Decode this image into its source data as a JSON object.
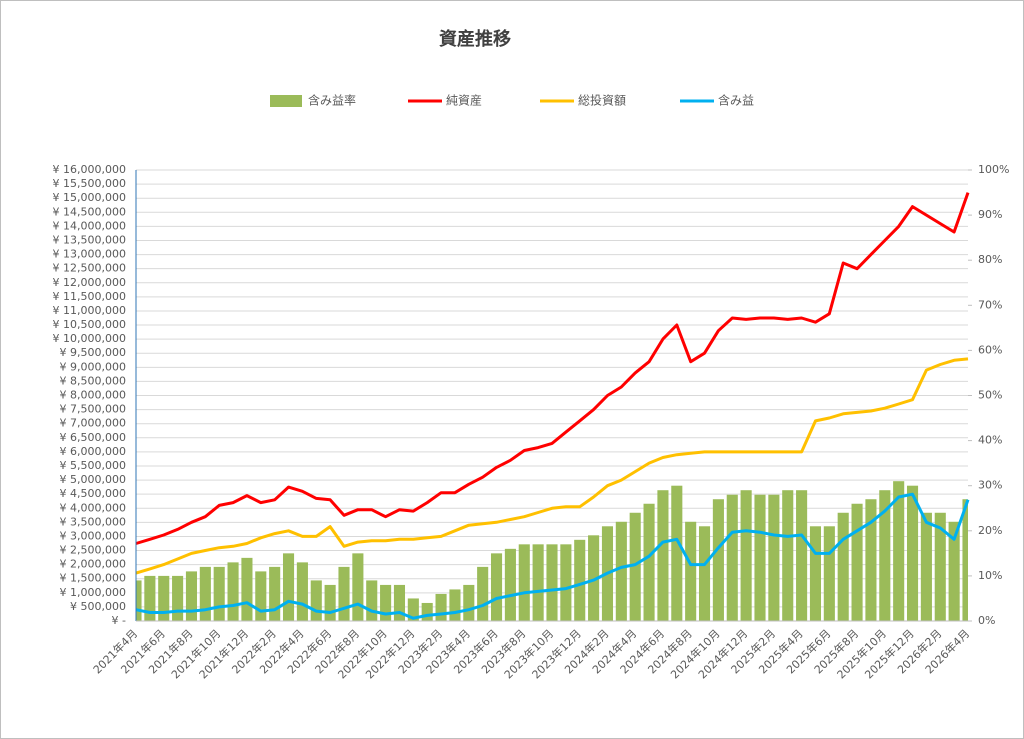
{
  "chart_data": {
    "type": "combo",
    "title": "資産推移",
    "categories": [
      "2021年4月",
      null,
      "2021年6月",
      null,
      "2021年8月",
      null,
      "2021年10月",
      null,
      "2021年12月",
      null,
      "2022年2月",
      null,
      "2022年4月",
      null,
      "2022年6月",
      null,
      "2022年8月",
      null,
      "2022年10月",
      null,
      "2022年12月",
      null,
      "2023年2月",
      null,
      "2023年4月",
      null,
      "2023年6月",
      null,
      "2023年8月",
      null,
      "2023年10月",
      null,
      "2023年12月",
      null,
      "2024年2月",
      null,
      "2024年4月",
      null,
      "2024年6月",
      null,
      "2024年8月",
      null,
      "2024年10月",
      null,
      "2024年12月",
      null,
      "2025年2月",
      null,
      "2025年4月",
      null,
      "2025年6月",
      null,
      "2025年8月",
      null,
      "2025年10月",
      null,
      "2025年12月",
      null,
      "2026年2月",
      null,
      "2026年4月"
    ],
    "series": [
      {
        "name": "含み益率",
        "type": "bar",
        "axis": "y2",
        "color": "#9bbb59",
        "values": [
          9,
          10,
          10,
          10,
          11,
          12,
          12,
          13,
          14,
          11,
          12,
          15,
          13,
          9,
          8,
          12,
          15,
          9,
          8,
          8,
          5,
          4,
          6,
          7,
          8,
          12,
          15,
          16,
          17,
          17,
          17,
          17,
          18,
          19,
          21,
          22,
          24,
          26,
          29,
          30,
          22,
          21,
          27,
          28,
          29,
          28,
          28,
          29,
          29,
          21,
          21,
          24,
          26,
          27,
          29,
          31,
          30,
          24,
          24,
          22,
          27
        ]
      },
      {
        "name": "純資産",
        "type": "line",
        "color": "#ff0000",
        "values": [
          2750000,
          2900000,
          3050000,
          3250000,
          3500000,
          3700000,
          4100000,
          4200000,
          4450000,
          4200000,
          4300000,
          4750000,
          4600000,
          4350000,
          4300000,
          3750000,
          3950000,
          3950000,
          3700000,
          3950000,
          3900000,
          4200000,
          4550000,
          4550000,
          4850000,
          5100000,
          5450000,
          5700000,
          6050000,
          6150000,
          6300000,
          6700000,
          7100000,
          7500000,
          8000000,
          8300000,
          8800000,
          9200000,
          10000000,
          10500000,
          9200000,
          9500000,
          10300000,
          10750000,
          10700000,
          10750000,
          10750000,
          10700000,
          10750000,
          10600000,
          10900000,
          12700000,
          12500000,
          13000000,
          13500000,
          14000000,
          14700000,
          14400000,
          14100000,
          13800000,
          15200000
        ]
      },
      {
        "name": "総投資額",
        "type": "line",
        "color": "#ffc000",
        "values": [
          1700000,
          1850000,
          2000000,
          2200000,
          2400000,
          2500000,
          2600000,
          2650000,
          2750000,
          2950000,
          3100000,
          3200000,
          3000000,
          3000000,
          3350000,
          2650000,
          2800000,
          2850000,
          2850000,
          2900000,
          2900000,
          2950000,
          3000000,
          3200000,
          3400000,
          3450000,
          3500000,
          3600000,
          3700000,
          3850000,
          4000000,
          4050000,
          4050000,
          4400000,
          4800000,
          5000000,
          5300000,
          5600000,
          5800000,
          5900000,
          5950000,
          6000000,
          6000000,
          6000000,
          6000000,
          6000000,
          6000000,
          6000000,
          6000000,
          7100000,
          7200000,
          7350000,
          7400000,
          7450000,
          7550000,
          7700000,
          7850000,
          8900000,
          9100000,
          9250000,
          9300000
        ]
      },
      {
        "name": "含み益",
        "type": "line",
        "color": "#00b0f0",
        "values": [
          400000,
          300000,
          300000,
          350000,
          350000,
          400000,
          500000,
          550000,
          650000,
          350000,
          400000,
          700000,
          600000,
          350000,
          300000,
          450000,
          600000,
          350000,
          250000,
          300000,
          100000,
          200000,
          250000,
          300000,
          400000,
          550000,
          800000,
          900000,
          1000000,
          1050000,
          1100000,
          1150000,
          1300000,
          1450000,
          1700000,
          1900000,
          2000000,
          2300000,
          2800000,
          2900000,
          2000000,
          2000000,
          2600000,
          3150000,
          3200000,
          3150000,
          3050000,
          3000000,
          3050000,
          2400000,
          2400000,
          2900000,
          3200000,
          3500000,
          3900000,
          4400000,
          4500000,
          3500000,
          3300000,
          2900000,
          4300000
        ]
      }
    ],
    "ylim": [
      0,
      16000000
    ],
    "yticks": [
      {
        "value": 0,
        "label": "¥ -"
      },
      {
        "value": 500000,
        "label": "¥ 500,000"
      },
      {
        "value": 1000000,
        "label": "¥ 1,000,000"
      },
      {
        "value": 1500000,
        "label": "¥ 1,500,000"
      },
      {
        "value": 2000000,
        "label": "¥ 2,000,000"
      },
      {
        "value": 2500000,
        "label": "¥ 2,500,000"
      },
      {
        "value": 3000000,
        "label": "¥ 3,000,000"
      },
      {
        "value": 3500000,
        "label": "¥ 3,500,000"
      },
      {
        "value": 4000000,
        "label": "¥ 4,000,000"
      },
      {
        "value": 4500000,
        "label": "¥ 4,500,000"
      },
      {
        "value": 5000000,
        "label": "¥ 5,000,000"
      },
      {
        "value": 5500000,
        "label": "¥ 5,500,000"
      },
      {
        "value": 6000000,
        "label": "¥ 6,000,000"
      },
      {
        "value": 6500000,
        "label": "¥ 6,500,000"
      },
      {
        "value": 7000000,
        "label": "¥ 7,000,000"
      },
      {
        "value": 7500000,
        "label": "¥ 7,500,000"
      },
      {
        "value": 8000000,
        "label": "¥ 8,000,000"
      },
      {
        "value": 8500000,
        "label": "¥ 8,500,000"
      },
      {
        "value": 9000000,
        "label": "¥ 9,000,000"
      },
      {
        "value": 9500000,
        "label": "¥ 9,500,000"
      },
      {
        "value": 10000000,
        "label": "¥ 10,000,000"
      },
      {
        "value": 10500000,
        "label": "¥ 10,500,000"
      },
      {
        "value": 11000000,
        "label": "¥ 11,000,000"
      },
      {
        "value": 11500000,
        "label": "¥ 11,500,000"
      },
      {
        "value": 12000000,
        "label": "¥ 12,000,000"
      },
      {
        "value": 12500000,
        "label": "¥ 12,500,000"
      },
      {
        "value": 13000000,
        "label": "¥ 13,000,000"
      },
      {
        "value": 13500000,
        "label": "¥ 13,500,000"
      },
      {
        "value": 14000000,
        "label": "¥ 14,000,000"
      },
      {
        "value": 14500000,
        "label": "¥ 14,500,000"
      },
      {
        "value": 15000000,
        "label": "¥ 15,000,000"
      },
      {
        "value": 15500000,
        "label": "¥ 15,500,000"
      },
      {
        "value": 16000000,
        "label": "¥ 16,000,000"
      }
    ],
    "y2lim": [
      0,
      100
    ],
    "y2ticks": [
      {
        "value": 0,
        "label": "0%"
      },
      {
        "value": 10,
        "label": "10%"
      },
      {
        "value": 20,
        "label": "20%"
      },
      {
        "value": 30,
        "label": "30%"
      },
      {
        "value": 40,
        "label": "40%"
      },
      {
        "value": 50,
        "label": "50%"
      },
      {
        "value": 60,
        "label": "60%"
      },
      {
        "value": 70,
        "label": "70%"
      },
      {
        "value": 80,
        "label": "80%"
      },
      {
        "value": 90,
        "label": "90%"
      },
      {
        "value": 100,
        "label": "100%"
      }
    ],
    "grid": true,
    "legend": "top"
  }
}
